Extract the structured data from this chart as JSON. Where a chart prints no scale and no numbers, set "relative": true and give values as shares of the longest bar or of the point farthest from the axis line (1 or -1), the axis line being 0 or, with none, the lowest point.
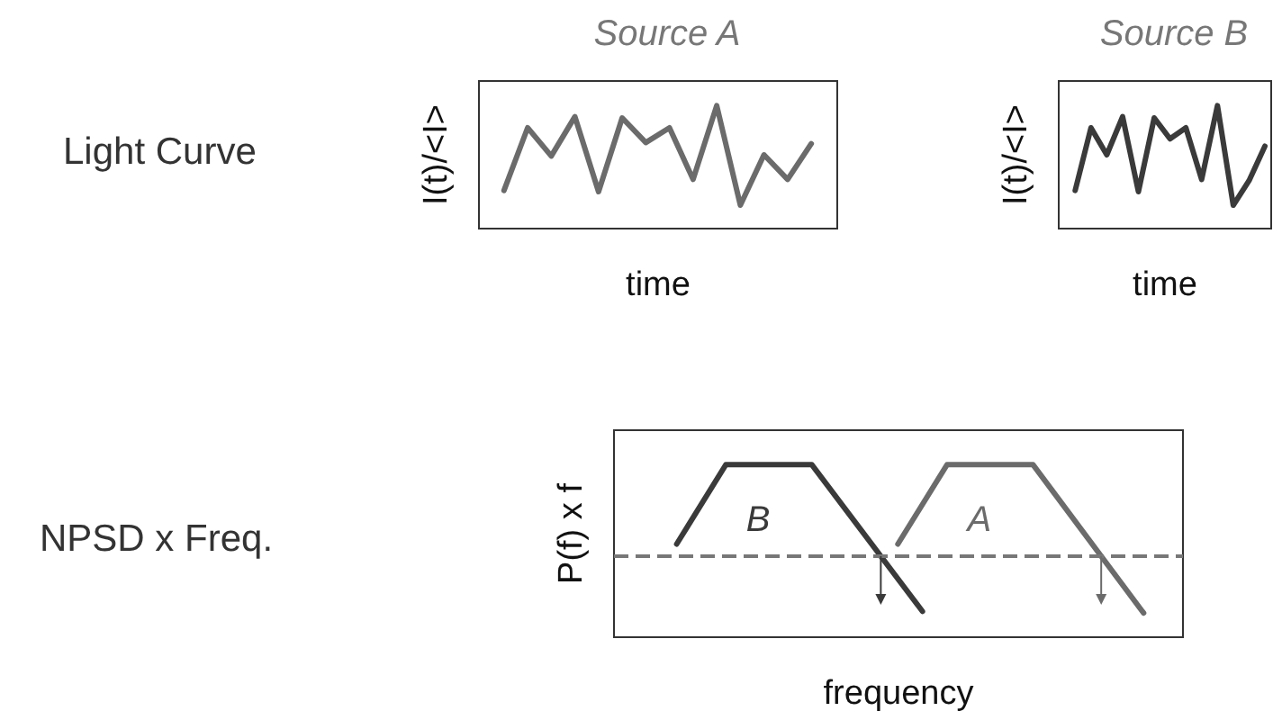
{
  "chart_data": [
    {
      "type": "line",
      "title": "Source A",
      "xlabel": "time",
      "ylabel": "I(t)/<I>",
      "annotations": [
        "Light Curve"
      ],
      "relative": true,
      "marker": "none",
      "line_style": "solid",
      "grid": false,
      "categories": [
        null,
        null,
        null,
        null,
        null,
        null,
        null,
        null,
        null,
        null,
        null,
        null,
        null,
        null
      ],
      "series": [
        {
          "color": "#6b6b6b",
          "values": [
            0.31,
            0.82,
            0.59,
            0.91,
            0.3,
            0.9,
            0.7,
            0.82,
            0.4,
            1,
            0.19,
            0.6,
            0.4,
            0.69
          ]
        }
      ]
    },
    {
      "type": "line",
      "title": "Source B",
      "xlabel": "time",
      "ylabel": "I(t)/<I>",
      "relative": true,
      "marker": "none",
      "line_style": "solid",
      "grid": false,
      "categories": [
        null,
        null,
        null,
        null,
        null,
        null,
        null,
        null,
        null,
        null,
        null,
        null,
        null
      ],
      "series": [
        {
          "color": "#3a3a3a",
          "values": [
            0.31,
            0.82,
            0.6,
            0.91,
            0.3,
            0.9,
            0.73,
            0.82,
            0.4,
            1,
            0.19,
            0.39,
            0.67
          ]
        }
      ]
    },
    {
      "type": "line",
      "xlabel": "frequency",
      "ylabel": "P(f) x f",
      "annotations": [
        "NPSD x Freq."
      ],
      "relative": true,
      "marker": "none",
      "line_style": "solid",
      "grid": false,
      "categories": [
        null,
        null,
        null,
        null,
        null,
        null,
        null,
        null,
        null,
        null,
        null,
        null,
        null,
        null,
        null,
        null,
        null,
        null,
        null,
        null,
        null,
        null,
        null,
        null,
        null,
        null,
        null,
        null,
        null,
        null,
        null,
        null,
        null,
        null,
        null,
        null,
        null,
        null,
        null
      ],
      "series": [
        {
          "name": "B",
          "color": "#3a3a3a",
          "values": [
            0.54,
            null,
            null,
            null,
            1,
            null,
            null,
            null,
            null,
            null,
            null,
            1,
            null,
            null,
            null,
            null,
            null,
            null,
            null,
            null,
            0.15,
            null,
            null,
            null,
            null,
            null,
            null,
            null,
            null,
            null,
            null,
            null,
            null,
            null,
            null,
            null,
            null,
            null,
            null
          ]
        },
        {
          "name": "A",
          "color": "#6b6b6b",
          "values": [
            null,
            null,
            null,
            null,
            null,
            null,
            null,
            null,
            null,
            null,
            null,
            null,
            null,
            null,
            null,
            null,
            null,
            null,
            0.54,
            null,
            null,
            null,
            1,
            null,
            null,
            null,
            null,
            null,
            null,
            1,
            null,
            null,
            null,
            null,
            null,
            null,
            null,
            null,
            0.14
          ]
        }
      ],
      "ref_lines": [
        {
          "axis": "y",
          "value": 0.47,
          "color": "#777777",
          "line_style": "dashed"
        }
      ]
    }
  ]
}
